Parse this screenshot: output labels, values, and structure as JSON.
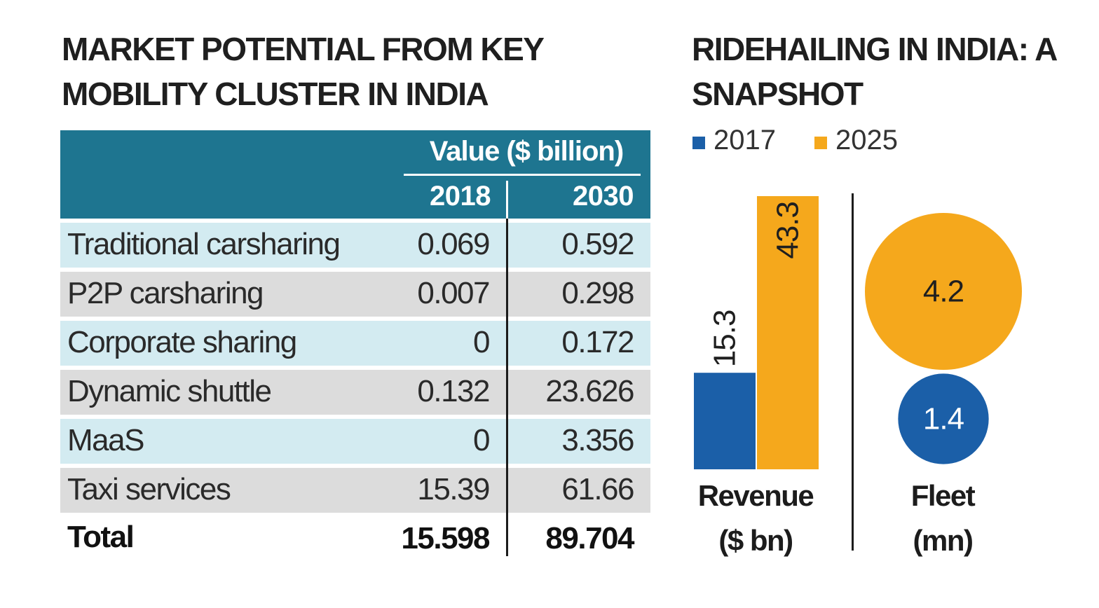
{
  "left_title": "MARKET POTENTIAL FROM KEY MOBILITY CLUSTER IN INDIA",
  "right_title": "RIDEHAILING IN INDIA: A SNAPSHOT",
  "table": {
    "value_label": "Value ($ billion)",
    "years": [
      "2018",
      "2030"
    ],
    "rows": [
      {
        "category": "Traditional carsharing",
        "v2018": "0.069",
        "v2030": "0.592"
      },
      {
        "category": "P2P carsharing",
        "v2018": "0.007",
        "v2030": "0.298"
      },
      {
        "category": "Corporate sharing",
        "v2018": "0",
        "v2030": "0.172"
      },
      {
        "category": "Dynamic shuttle",
        "v2018": "0.132",
        "v2030": "23.626"
      },
      {
        "category": "MaaS",
        "v2018": "0",
        "v2030": "3.356"
      },
      {
        "category": "Taxi services",
        "v2018": "15.39",
        "v2030": "61.66"
      }
    ],
    "total": {
      "category": "Total",
      "v2018": "15.598",
      "v2030": "89.704"
    }
  },
  "legend": [
    {
      "label": "2017",
      "color": "#1b5fa8"
    },
    {
      "label": "2025",
      "color": "#f5a81c"
    }
  ],
  "chart_data": [
    {
      "type": "bar",
      "title": "Revenue ($ bn)",
      "categories": [
        "2017",
        "2025"
      ],
      "values": [
        15.3,
        43.3
      ],
      "labels": [
        "15.3",
        "43.3"
      ],
      "ylim": [
        0,
        43.3
      ],
      "colors": [
        "#1b5fa8",
        "#f5a81c"
      ],
      "caption": "Revenue",
      "caption_unit": "($ bn)"
    },
    {
      "type": "bubble",
      "title": "Fleet (mn)",
      "categories": [
        "2025",
        "2017"
      ],
      "values": [
        4.2,
        1.4
      ],
      "labels": [
        "4.2",
        "1.4"
      ],
      "colors": [
        "#f5a81c",
        "#1b5fa8"
      ],
      "caption": "Fleet",
      "caption_unit": "(mn)"
    }
  ]
}
